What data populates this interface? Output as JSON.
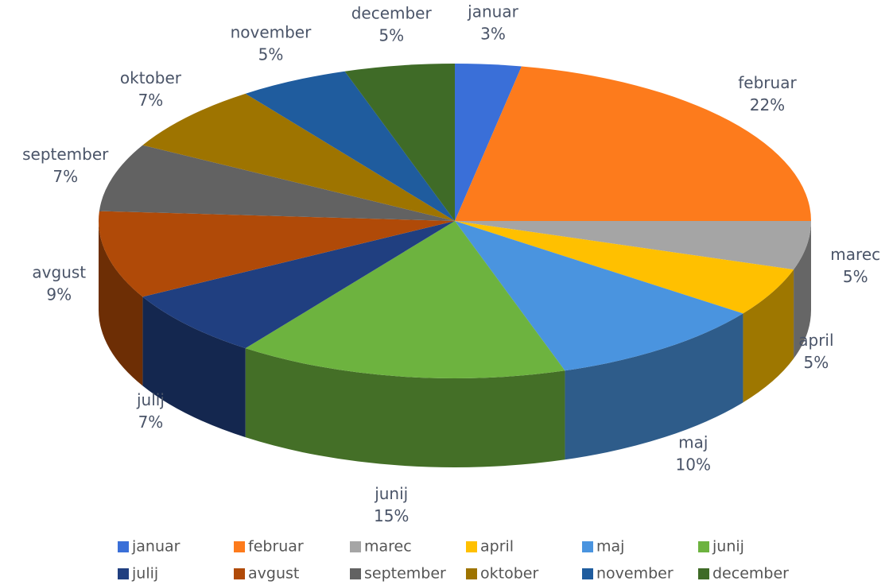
{
  "chart_data": {
    "type": "pie3d",
    "categories": [
      "januar",
      "februar",
      "marec",
      "april",
      "maj",
      "junij",
      "julij",
      "avgust",
      "september",
      "oktober",
      "november",
      "december"
    ],
    "values": [
      3,
      22,
      5,
      5,
      10,
      15,
      7,
      9,
      7,
      7,
      5,
      5
    ],
    "value_labels": [
      "3%",
      "22%",
      "5%",
      "5%",
      "10%",
      "15%",
      "7%",
      "9%",
      "7%",
      "7%",
      "5%",
      "5%"
    ],
    "colors": [
      "#3a6fd8",
      "#fd7b1c",
      "#a5a5a5",
      "#ffc000",
      "#4a94df",
      "#6db33f",
      "#203f80",
      "#b04a08",
      "#626262",
      "#9e7400",
      "#1f5c9e",
      "#3f6b27"
    ],
    "legend": "bottom"
  }
}
